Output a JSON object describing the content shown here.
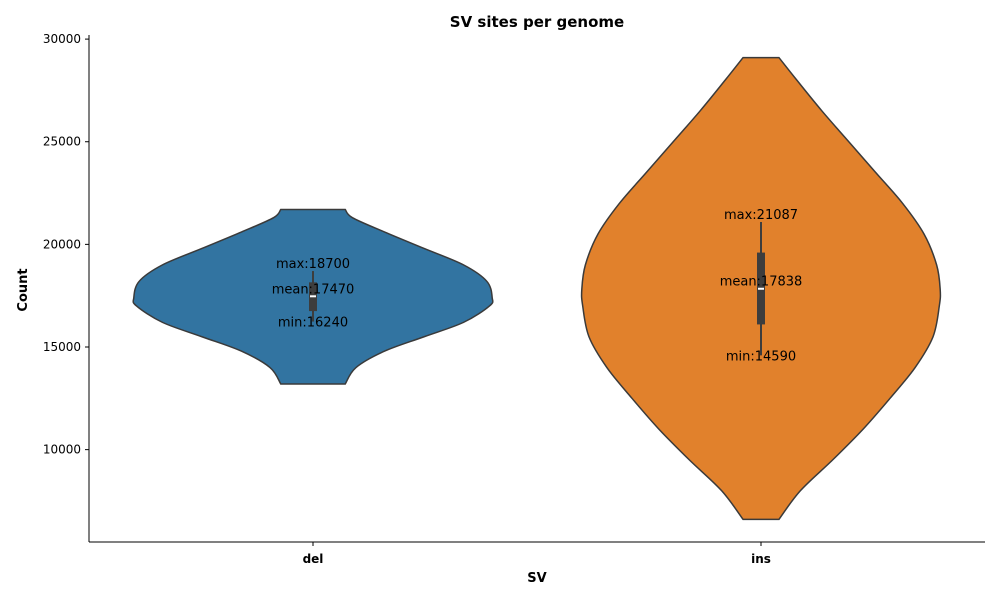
{
  "chart_data": {
    "type": "violin",
    "title": "SV sites per genome",
    "xlabel": "SV",
    "ylabel": "Count",
    "categories": [
      "del",
      "ins"
    ],
    "ylim": [
      5500,
      30200
    ],
    "yticks": [
      10000,
      15000,
      20000,
      25000,
      30000
    ],
    "grid": false,
    "series": [
      {
        "category": "del",
        "color": "#3274a1",
        "min": 16240,
        "max": 18700,
        "mean": 17470,
        "q1": 16750,
        "median": 17470,
        "q3": 18150,
        "min_label": "min:16240",
        "max_label": "max:18700",
        "mean_label": "mean:17470",
        "kde_y": [
          13200,
          14000,
          14800,
          15500,
          16200,
          17000,
          17400,
          18200,
          19000,
          19800,
          20600,
          21300,
          21700
        ],
        "kde_w": [
          0.18,
          0.24,
          0.4,
          0.62,
          0.84,
          0.985,
          1.0,
          0.97,
          0.84,
          0.62,
          0.4,
          0.22,
          0.18
        ]
      },
      {
        "category": "ins",
        "color": "#e1812c",
        "min": 14590,
        "max": 21087,
        "mean": 17838,
        "q1": 16100,
        "median": 17838,
        "q3": 19600,
        "min_label": "min:14590",
        "max_label": "max:21087",
        "mean_label": "mean:17838",
        "kde_y": [
          6600,
          8000,
          9500,
          11000,
          12500,
          14000,
          15500,
          17000,
          17800,
          19000,
          20500,
          22000,
          23500,
          25000,
          26500,
          28000,
          29100
        ],
        "kde_w": [
          0.1,
          0.22,
          0.4,
          0.57,
          0.72,
          0.86,
          0.96,
          0.995,
          1.0,
          0.98,
          0.91,
          0.79,
          0.64,
          0.49,
          0.34,
          0.2,
          0.1
        ]
      }
    ]
  }
}
